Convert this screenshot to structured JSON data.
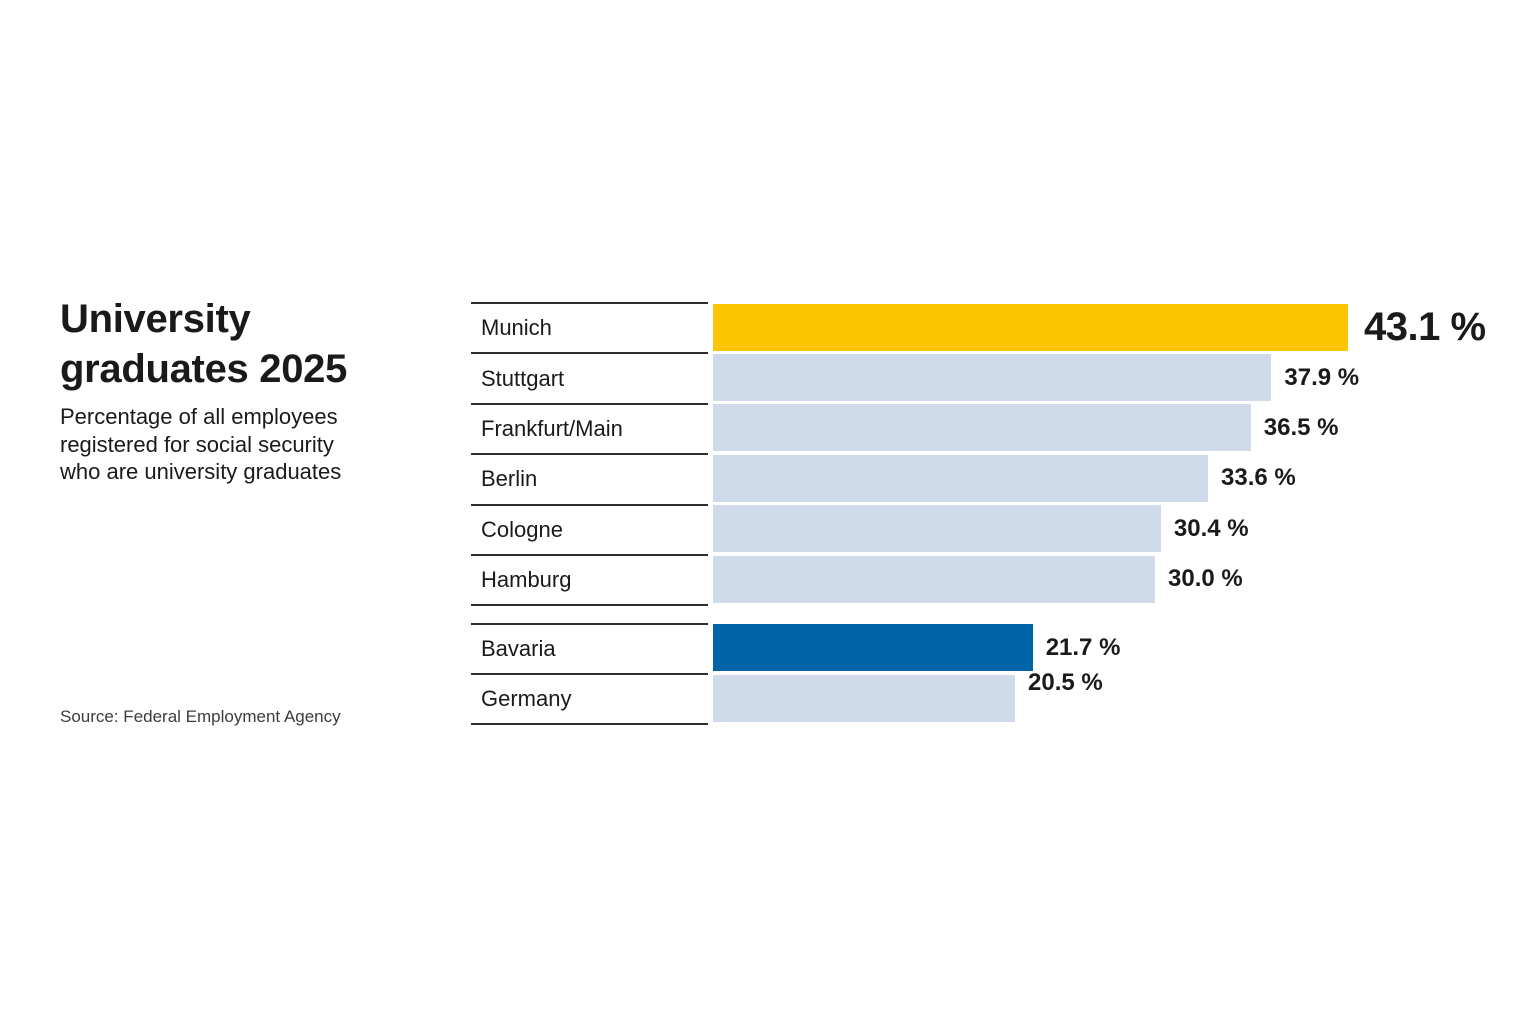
{
  "header": {
    "title_lines": [
      "University",
      "graduates 2025"
    ],
    "subtitle_lines": [
      "Percentage of all employees",
      "registered for social security",
      "who are university graduates"
    ],
    "source": "Source: Federal Employment Agency"
  },
  "colors": {
    "highlight": "#fdc500",
    "default_bar": "#cfdaea",
    "emphasis_bar": "#0064a8",
    "text": "#1a1a1a",
    "rule_line": "#2e2e2e"
  },
  "chart_data": {
    "type": "bar",
    "orientation": "horizontal",
    "title": "University graduates 2025",
    "subtitle": "Percentage of all employees registered for social security who are university graduates",
    "source": "Source: Federal Employment Agency",
    "unit": "%",
    "xlim": [
      0,
      43.1
    ],
    "max_value": 43.1,
    "grid": false,
    "legend": false,
    "groups": [
      {
        "name": "cities",
        "items": [
          {
            "label": "Munich",
            "value": 43.1,
            "value_label": "43.1 %",
            "style": "highlight"
          },
          {
            "label": "Stuttgart",
            "value": 37.9,
            "value_label": "37.9 %",
            "style": "default"
          },
          {
            "label": "Frankfurt/Main",
            "value": 36.5,
            "value_label": "36.5 %",
            "style": "default"
          },
          {
            "label": "Berlin",
            "value": 33.6,
            "value_label": "33.6 %",
            "style": "default"
          },
          {
            "label": "Cologne",
            "value": 30.4,
            "value_label": "30.4 %",
            "style": "default"
          },
          {
            "label": "Hamburg",
            "value": 30.0,
            "value_label": "30.0 %",
            "style": "default"
          }
        ]
      },
      {
        "name": "regions",
        "items": [
          {
            "label": "Bavaria",
            "value": 21.7,
            "value_label": "21.7 %",
            "style": "emphasis"
          },
          {
            "label": "Germany",
            "value": 20.5,
            "value_label": "20.5 %",
            "style": "default",
            "value_label_raised": true
          }
        ]
      }
    ]
  }
}
